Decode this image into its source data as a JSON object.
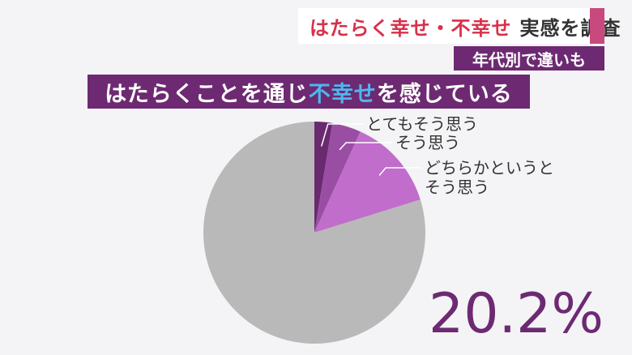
{
  "header": {
    "title_highlight": "はたらく幸せ・不幸せ",
    "title_rest": "実感を調査",
    "subtitle": "年代別で違いも"
  },
  "question": {
    "prefix": "はたらくことを通じ",
    "highlight": "不幸せ",
    "suffix": "を感じている"
  },
  "colors": {
    "accent": "#6d2a72",
    "title_red": "#d9304a",
    "highlight_blue": "#4fb6ee",
    "remainder": "#b9b9b9"
  },
  "chart_data": {
    "type": "pie",
    "total_label": "20.2%",
    "slices": [
      {
        "label": "とてもそう思う",
        "value": 2.6,
        "color": "#6a2a6f"
      },
      {
        "label": "そう思う",
        "value": 4.2,
        "color": "#9a4ea3"
      },
      {
        "label": "どちらかというとそう思う",
        "label_lines": [
          "どちらかというと",
          "そう思う"
        ],
        "value": 13.4,
        "color": "#c06dcb"
      },
      {
        "label": "",
        "value": 79.8,
        "color": "#b9b9b9"
      }
    ]
  }
}
